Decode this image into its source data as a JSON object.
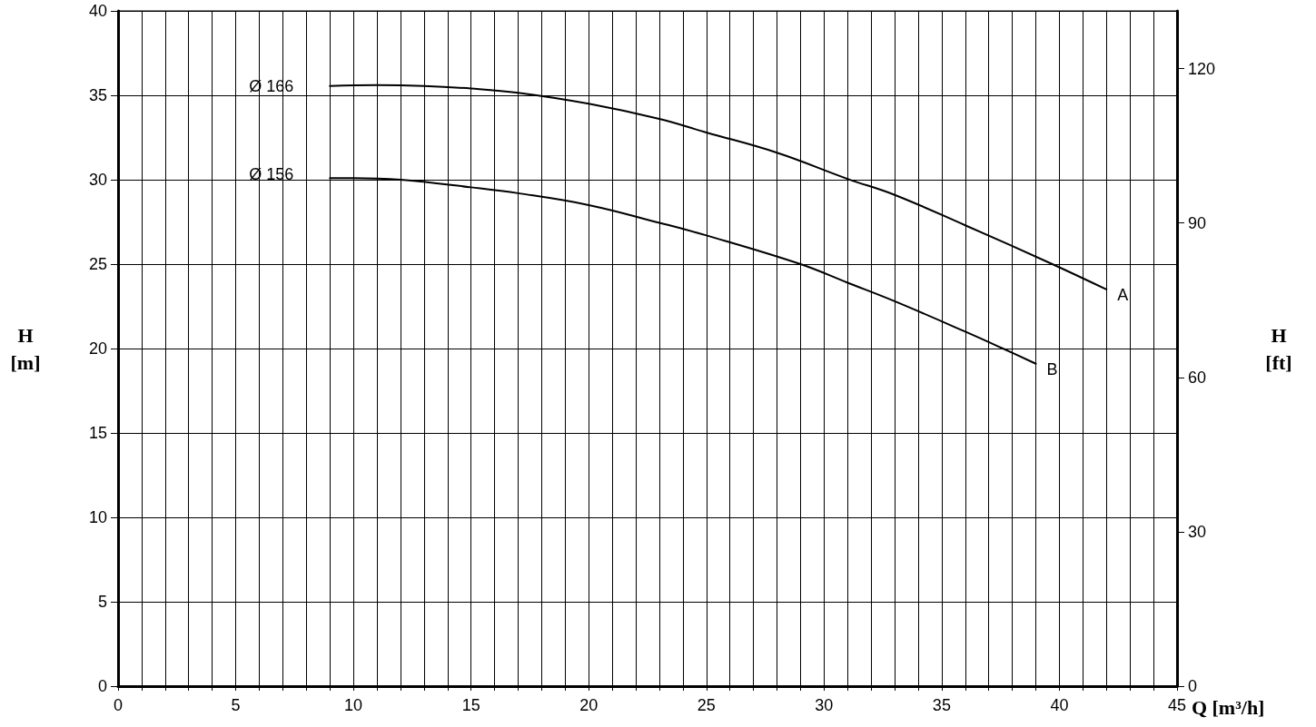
{
  "chart_data": {
    "type": "line",
    "xlabel": "Q [m³/h]",
    "ylabel": "H [m]",
    "y2label": "H [ft]",
    "xlim": [
      0,
      45
    ],
    "xticks": [
      0,
      {
        "value": 1,
        "label": null
      },
      {
        "value": 2,
        "label": null
      },
      {
        "value": 3,
        "label": null
      },
      {
        "value": 4,
        "label": null
      },
      5,
      {
        "value": 6,
        "label": null
      },
      {
        "value": 7,
        "label": null
      },
      {
        "value": 8,
        "label": null
      },
      {
        "value": 9,
        "label": null
      },
      10,
      {
        "value": 11,
        "label": null
      },
      {
        "value": 12,
        "label": null
      },
      {
        "value": 13,
        "label": null
      },
      {
        "value": 14,
        "label": null
      },
      15,
      {
        "value": 16,
        "label": null
      },
      {
        "value": 17,
        "label": null
      },
      {
        "value": 18,
        "label": null
      },
      {
        "value": 19,
        "label": null
      },
      20,
      {
        "value": 21,
        "label": null
      },
      {
        "value": 22,
        "label": null
      },
      {
        "value": 23,
        "label": null
      },
      {
        "value": 24,
        "label": null
      },
      25,
      {
        "value": 26,
        "label": null
      },
      {
        "value": 27,
        "label": null
      },
      {
        "value": 28,
        "label": null
      },
      {
        "value": 29,
        "label": null
      },
      30,
      {
        "value": 31,
        "label": null
      },
      {
        "value": 32,
        "label": null
      },
      {
        "value": 33,
        "label": null
      },
      {
        "value": 34,
        "label": null
      },
      35,
      {
        "value": 36,
        "label": null
      },
      {
        "value": 37,
        "label": null
      },
      {
        "value": 38,
        "label": null
      },
      {
        "value": 39,
        "label": null
      },
      40,
      {
        "value": 41,
        "label": null
      },
      {
        "value": 42,
        "label": null
      },
      {
        "value": 43,
        "label": null
      },
      {
        "value": 44,
        "label": null
      },
      45
    ],
    "ylim": [
      0,
      40
    ],
    "yticks": [
      0,
      5,
      10,
      15,
      20,
      25,
      30,
      35,
      40
    ],
    "y2lim": [
      0,
      131.2
    ],
    "y2ticks": [
      0,
      30,
      60,
      90,
      120
    ],
    "grid": true,
    "marker": "none",
    "line_style": "solid",
    "series": [
      {
        "name": "A",
        "color": "#000000",
        "x": [
          9,
          11,
          13,
          15,
          17,
          20,
          23,
          25,
          28,
          31,
          33,
          36,
          39.7,
          42
        ],
        "values": [
          35.55,
          35.6,
          35.55,
          35.4,
          35.15,
          34.5,
          33.6,
          32.8,
          31.6,
          30.05,
          29.1,
          27.3,
          25,
          23.5
        ]
      },
      {
        "name": "B",
        "color": "#000000",
        "x": [
          9,
          10,
          12,
          15,
          17,
          20,
          23,
          25,
          29,
          31,
          33,
          36,
          37.6,
          39
        ],
        "values": [
          30.1,
          30.1,
          30.0,
          29.55,
          29.2,
          28.5,
          27.45,
          26.7,
          25,
          23.9,
          22.8,
          21,
          20,
          19.1
        ]
      }
    ],
    "annotations": [
      "Ø 166",
      "Ø 156"
    ]
  }
}
